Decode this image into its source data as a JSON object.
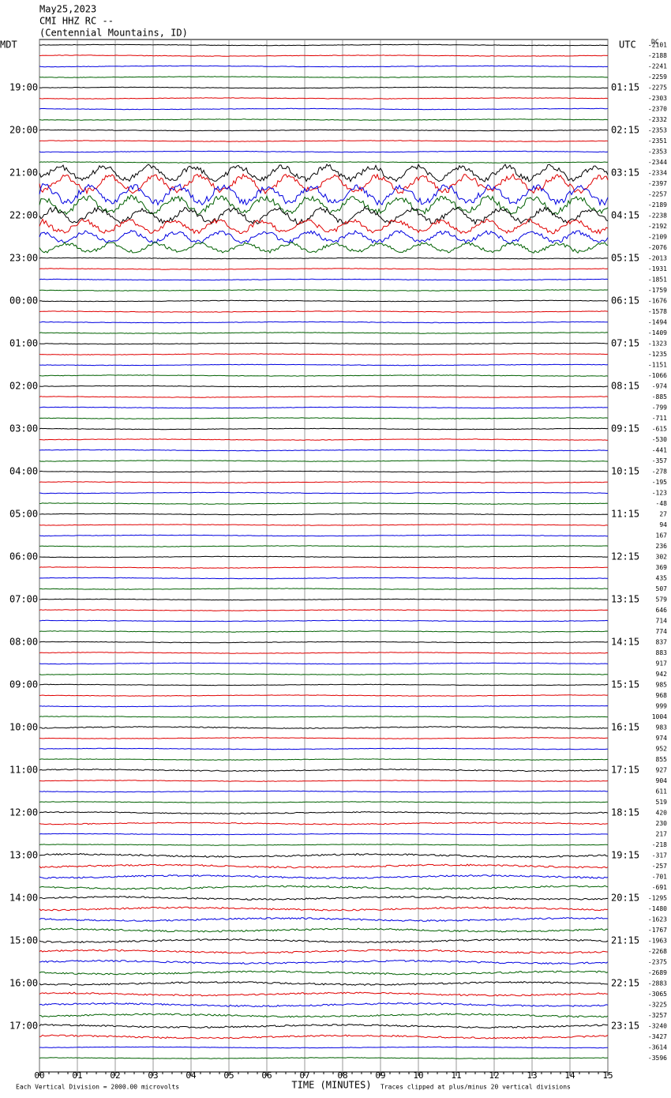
{
  "header": {
    "date": "May25,2023",
    "station": "CMI HHZ RC --",
    "location": "(Centennial Mountains, ID)"
  },
  "left_axis_label": "MDT",
  "right_axis_label": "UTC",
  "dc_label": "DC",
  "left_hour_labels": [
    "19:00",
    "20:00",
    "21:00",
    "22:00",
    "23:00",
    "00:00",
    "01:00",
    "02:00",
    "03:00",
    "04:00",
    "05:00",
    "06:00",
    "07:00",
    "08:00",
    "09:00",
    "10:00",
    "11:00",
    "12:00",
    "13:00",
    "14:00",
    "15:00",
    "16:00",
    "17:00"
  ],
  "right_hour_labels": [
    "01:15",
    "02:15",
    "03:15",
    "04:15",
    "05:15",
    "06:15",
    "07:15",
    "08:15",
    "09:15",
    "10:15",
    "11:15",
    "12:15",
    "13:15",
    "14:15",
    "15:15",
    "16:15",
    "17:15",
    "18:15",
    "19:15",
    "20:15",
    "21:15",
    "22:15",
    "23:15"
  ],
  "dc_offsets": [
    -2101,
    -2188,
    -2241,
    -2259,
    -2275,
    -2303,
    -2370,
    -2332,
    -2353,
    -2351,
    -2353,
    -2344,
    -2334,
    -2397,
    -2257,
    -2189,
    -2238,
    -2192,
    -2109,
    -2076,
    -2013,
    -1931,
    -1851,
    -1759,
    -1676,
    -1578,
    -1494,
    -1409,
    -1323,
    -1235,
    -1151,
    -1066,
    -974,
    -885,
    -799,
    -711,
    -615,
    -530,
    -441,
    -357,
    -278,
    -195,
    -123,
    -48,
    27,
    94,
    167,
    236,
    302,
    369,
    435,
    507,
    579,
    646,
    714,
    774,
    837,
    883,
    917,
    942,
    985,
    968,
    999,
    1004,
    983,
    974,
    952,
    855,
    927,
    904,
    611,
    519,
    420,
    230,
    217,
    -218,
    -317,
    -257,
    -701,
    -691,
    -1295,
    -1480,
    -1623,
    -1767,
    -1963,
    -2268,
    -2375,
    -2689,
    -2883,
    -3065,
    -3225,
    -3257,
    -3240,
    -3427,
    -3614,
    -3596
  ],
  "x_ticks": [
    "00",
    "01",
    "02",
    "03",
    "04",
    "05",
    "06",
    "07",
    "08",
    "09",
    "10",
    "11",
    "12",
    "13",
    "14",
    "15"
  ],
  "x_axis_label": "TIME (MINUTES)",
  "footer_left": "Each Vertical Division = 2000.00 microvolts",
  "footer_right": "Traces clipped at plus/minus 20 vertical divisions",
  "trace_colors": [
    "#000000",
    "#e00000",
    "#0000e0",
    "#006000"
  ]
}
